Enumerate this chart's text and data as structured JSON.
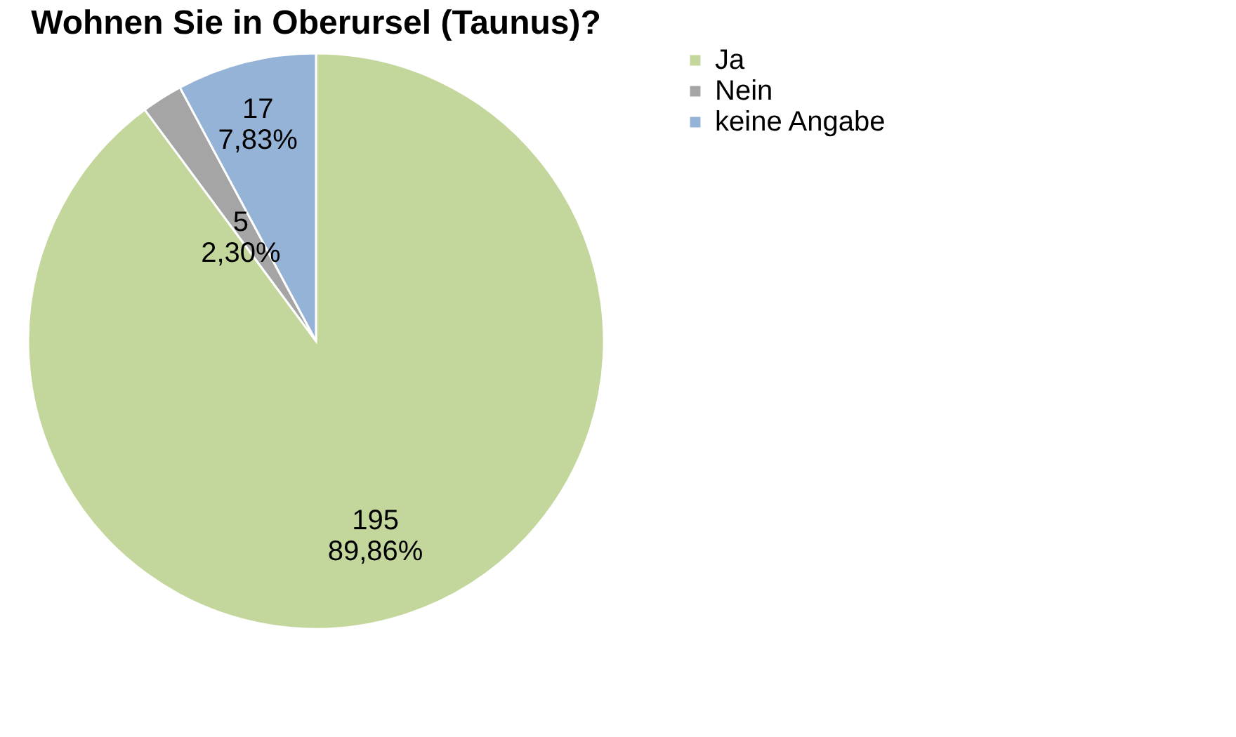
{
  "chart_data": {
    "type": "pie",
    "title": "Wohnen Sie in Oberursel (Taunus)?",
    "categories": [
      "Ja",
      "Nein",
      "keine Angabe"
    ],
    "values": [
      195,
      5,
      17
    ],
    "colors": [
      "#c3d69b",
      "#a5a5a5",
      "#95b3d7"
    ],
    "value_labels": [
      "195\n89,86%",
      "5\n2,30%",
      "17\n7,83%"
    ],
    "legend": "right"
  }
}
